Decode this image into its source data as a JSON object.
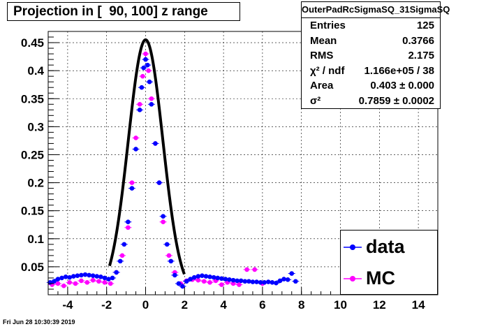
{
  "header": {
    "title": "Projection in [  90, 100] z range"
  },
  "stats": {
    "name": "OuterPadRcSigmaSQ_31SigmaSQ",
    "rows": [
      {
        "label": "Entries",
        "value": "125"
      },
      {
        "label": "Mean",
        "value": "0.3766"
      },
      {
        "label": "RMS",
        "value": "2.175"
      },
      {
        "label": "χ² / ndf",
        "value": "1.166e+05 / 38"
      },
      {
        "label": "Area",
        "value": "0.403  ± 0.000"
      },
      {
        "label": "σ²",
        "value": "0.7859  ± 0.0002"
      }
    ]
  },
  "legend": {
    "data_label": "data",
    "mc_label": "MC"
  },
  "footer": {
    "date": "Fri Jun 28 10:30:39 2019"
  },
  "colors": {
    "data": "#0000ff",
    "mc": "#ff00ff",
    "fit": "#000000"
  },
  "chart_data": {
    "type": "scatter",
    "title": "Projection in [  90, 100] z range",
    "xlim": [
      -5,
      15
    ],
    "ylim": [
      0,
      0.47
    ],
    "grid": true,
    "legend_position": "bottom-right",
    "x_ticks": [
      -4,
      -2,
      0,
      2,
      4,
      6,
      8,
      10,
      12,
      14
    ],
    "y_ticks": [
      0.05,
      0.1,
      0.15,
      0.2,
      0.25,
      0.3,
      0.35,
      0.4,
      0.45
    ],
    "series": [
      {
        "name": "data",
        "marker": "circle",
        "points": [
          [
            -4.9,
            0.022
          ],
          [
            -4.7,
            0.024
          ],
          [
            -4.5,
            0.028
          ],
          [
            -4.3,
            0.03
          ],
          [
            -4.1,
            0.032
          ],
          [
            -3.9,
            0.031
          ],
          [
            -3.7,
            0.033
          ],
          [
            -3.5,
            0.034
          ],
          [
            -3.3,
            0.035
          ],
          [
            -3.1,
            0.036
          ],
          [
            -2.9,
            0.035
          ],
          [
            -2.7,
            0.034
          ],
          [
            -2.5,
            0.033
          ],
          [
            -2.3,
            0.032
          ],
          [
            -2.1,
            0.03
          ],
          [
            -1.9,
            0.028
          ],
          [
            -1.7,
            0.03
          ],
          [
            -1.5,
            0.04
          ],
          [
            -1.3,
            0.06
          ],
          [
            -1.1,
            0.09
          ],
          [
            -0.9,
            0.13
          ],
          [
            -0.7,
            0.19
          ],
          [
            -0.5,
            0.26
          ],
          [
            -0.3,
            0.33
          ],
          [
            -0.2,
            0.37
          ],
          [
            -0.1,
            0.405
          ],
          [
            0.0,
            0.42
          ],
          [
            0.1,
            0.41
          ],
          [
            0.2,
            0.38
          ],
          [
            0.3,
            0.34
          ],
          [
            0.5,
            0.27
          ],
          [
            0.7,
            0.2
          ],
          [
            0.9,
            0.14
          ],
          [
            1.1,
            0.09
          ],
          [
            1.3,
            0.06
          ],
          [
            1.5,
            0.035
          ],
          [
            1.7,
            0.02
          ],
          [
            1.9,
            0.015
          ],
          [
            2.1,
            0.024
          ],
          [
            2.3,
            0.028
          ],
          [
            2.5,
            0.031
          ],
          [
            2.7,
            0.033
          ],
          [
            2.9,
            0.034
          ],
          [
            3.1,
            0.033
          ],
          [
            3.3,
            0.032
          ],
          [
            3.5,
            0.031
          ],
          [
            3.7,
            0.03
          ],
          [
            3.9,
            0.029
          ],
          [
            4.1,
            0.028
          ],
          [
            4.3,
            0.027
          ],
          [
            4.5,
            0.026
          ],
          [
            4.7,
            0.025
          ],
          [
            4.9,
            0.025
          ],
          [
            5.1,
            0.024
          ],
          [
            5.3,
            0.024
          ],
          [
            5.5,
            0.023
          ],
          [
            5.7,
            0.023
          ],
          [
            5.9,
            0.022
          ],
          [
            6.1,
            0.022
          ],
          [
            6.3,
            0.023
          ],
          [
            6.5,
            0.022
          ],
          [
            6.7,
            0.021
          ],
          [
            6.9,
            0.025
          ],
          [
            7.1,
            0.028
          ],
          [
            7.3,
            0.027
          ],
          [
            7.5,
            0.038
          ],
          [
            7.7,
            0.024
          ]
        ]
      },
      {
        "name": "MC",
        "marker": "circle",
        "points": [
          [
            -4.8,
            0.018
          ],
          [
            -4.5,
            0.02
          ],
          [
            -4.2,
            0.016
          ],
          [
            -3.9,
            0.022
          ],
          [
            -3.6,
            0.02
          ],
          [
            -3.3,
            0.025
          ],
          [
            -3.0,
            0.022
          ],
          [
            -2.7,
            0.026
          ],
          [
            -2.4,
            0.024
          ],
          [
            -2.1,
            0.022
          ],
          [
            -1.8,
            0.02
          ],
          [
            -1.5,
            0.04
          ],
          [
            -1.2,
            0.07
          ],
          [
            -0.9,
            0.12
          ],
          [
            -0.7,
            0.2
          ],
          [
            -0.5,
            0.28
          ],
          [
            -0.3,
            0.34
          ],
          [
            -0.15,
            0.39
          ],
          [
            0.0,
            0.43
          ],
          [
            0.15,
            0.4
          ],
          [
            0.3,
            0.35
          ],
          [
            0.5,
            0.27
          ],
          [
            0.7,
            0.2
          ],
          [
            0.9,
            0.13
          ],
          [
            1.2,
            0.07
          ],
          [
            1.5,
            0.04
          ],
          [
            1.8,
            0.02
          ],
          [
            2.1,
            0.025
          ],
          [
            2.4,
            0.027
          ],
          [
            2.7,
            0.026
          ],
          [
            3.0,
            0.024
          ],
          [
            3.3,
            0.022
          ],
          [
            3.6,
            0.025
          ],
          [
            3.9,
            0.018
          ],
          [
            4.2,
            0.022
          ],
          [
            4.5,
            0.02
          ],
          [
            4.8,
            0.018
          ],
          [
            5.2,
            0.045
          ],
          [
            5.6,
            0.045
          ],
          [
            6.0,
            0.02
          ]
        ]
      },
      {
        "name": "fit",
        "type": "line",
        "function": "gauss",
        "sigma2": 0.7859,
        "amplitude": 0.455,
        "x_range": [
          -1.85,
          2.0
        ]
      }
    ]
  }
}
